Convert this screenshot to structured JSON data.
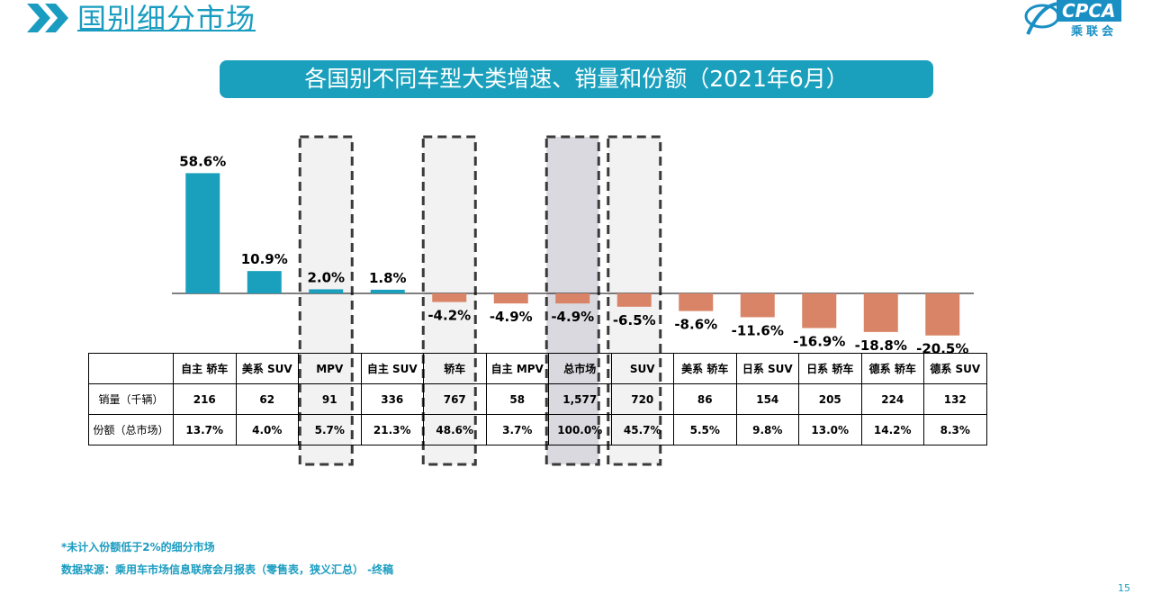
{
  "page": {
    "section_title": "国别细分市场",
    "logo_text": "CPCA",
    "logo_sub": "乘联会",
    "page_number": "15"
  },
  "chart_data": {
    "type": "bar",
    "title": "各国别不同车型大类增速、销量和份额（2021年6月）",
    "categories": [
      "自主 轿车",
      "美系 SUV",
      "MPV",
      "自主 SUV",
      "轿车",
      "自主 MPV",
      "总市场",
      "SUV",
      "美系 轿车",
      "日系 SUV",
      "日系 轿车",
      "德系 轿车",
      "德系 SUV"
    ],
    "values": [
      58.6,
      10.9,
      2.0,
      1.8,
      -4.2,
      -4.9,
      -4.9,
      -6.5,
      -8.6,
      -11.6,
      -16.9,
      -18.8,
      -20.5
    ],
    "value_labels": [
      "58.6%",
      "10.9%",
      "2.0%",
      "1.8%",
      "-4.2%",
      "-4.9%",
      "-4.9%",
      "-6.5%",
      "-8.6%",
      "-11.6%",
      "-16.9%",
      "-18.8%",
      "-20.5%"
    ],
    "highlighted": [
      "MPV",
      "轿车",
      "总市场",
      "SUV"
    ],
    "total_market": "总市场",
    "positive_color": "#1aa0bd",
    "negative_color": "#d98466",
    "ylim": [
      -22,
      62
    ]
  },
  "table": {
    "row_labels": [
      "销量（千辆）",
      "份额（总市场）"
    ],
    "sales": [
      "216",
      "62",
      "91",
      "336",
      "767",
      "58",
      "1,577",
      "720",
      "86",
      "154",
      "205",
      "224",
      "132"
    ],
    "share": [
      "13.7%",
      "4.0%",
      "5.7%",
      "21.3%",
      "48.6%",
      "3.7%",
      "100.0%",
      "45.7%",
      "5.5%",
      "9.8%",
      "13.0%",
      "14.2%",
      "8.3%"
    ]
  },
  "footnotes": {
    "note": "*未计入份额低于2%的细分市场",
    "source": "数据来源：乘用车市场信息联席会月报表（零售表，狭义汇总） -终稿"
  }
}
